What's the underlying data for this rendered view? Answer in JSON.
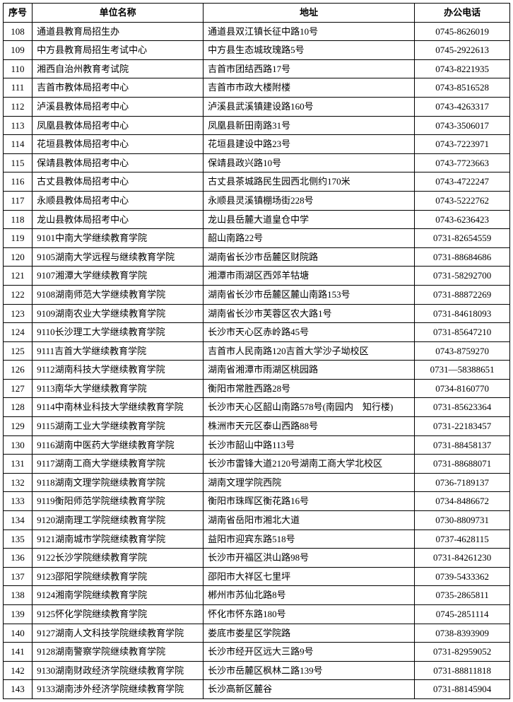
{
  "columns": [
    "序号",
    "单位名称",
    "地址",
    "办公电话"
  ],
  "rows": [
    [
      "108",
      "通道县教育局招生办",
      "通道县双江镇长征中路10号",
      "0745-8626019"
    ],
    [
      "109",
      "中方县教育局招生考试中心",
      "中方县生态城玫瑰路5号",
      "0745-2922613"
    ],
    [
      "110",
      "湘西自治州教育考试院",
      "吉首市团结西路17号",
      "0743-8221935"
    ],
    [
      "111",
      "吉首市教体局招考中心",
      "吉首市市政大楼附楼",
      "0743-8516528"
    ],
    [
      "112",
      "泸溪县教体局招考中心",
      "泸溪县武溪镇建设路160号",
      "0743-4263317"
    ],
    [
      "113",
      "凤凰县教体局招考中心",
      "凤凰县新田南路31号",
      "0743-3506017"
    ],
    [
      "114",
      "花垣县教体局招考中心",
      "花垣县建设中路23号",
      "0743-7223971"
    ],
    [
      "115",
      "保靖县教体局招考中心",
      "保靖县政兴路10号",
      "0743-7723663"
    ],
    [
      "116",
      "古丈县教体局招考中心",
      "古丈县茶城路民生园西北侧约170米",
      "0743-4722247"
    ],
    [
      "117",
      "永顺县教体局招考中心",
      "永顺县灵溪镇棚场街228号",
      "0743-5222762"
    ],
    [
      "118",
      "龙山县教体局招考中心",
      "龙山县岳麓大道皇仓中学",
      "0743-6236423"
    ],
    [
      "119",
      "9101中南大学继续教育学院",
      "韶山南路22号",
      "0731-82654559"
    ],
    [
      "120",
      "9105湖南大学远程与继续教育学院",
      "湖南省长沙市岳麓区财院路",
      "0731-88684686"
    ],
    [
      "121",
      "9107湘潭大学继续教育学院",
      "湘潭市雨湖区西郊羊牯塘",
      "0731-58292700"
    ],
    [
      "122",
      "9108湖南师范大学继续教育学院",
      "湖南省长沙市岳麓区麓山南路153号",
      "0731-88872269"
    ],
    [
      "123",
      "9109湖南农业大学继续教育学院",
      "湖南省长沙市芙蓉区农大路1号",
      "0731-84618093"
    ],
    [
      "124",
      "9110长沙理工大学继续教育学院",
      "长沙市天心区赤岭路45号",
      "0731-85647210"
    ],
    [
      "125",
      "9111吉首大学继续教育学院",
      "吉首市人民南路120吉首大学沙子坳校区",
      "0743-8759270"
    ],
    [
      "126",
      "9112湖南科技大学继续教育学院",
      "湖南省湘潭市雨湖区桃园路",
      "0731—58388651"
    ],
    [
      "127",
      "9113南华大学继续教育学院",
      "衡阳市常胜西路28号",
      "0734-8160770"
    ],
    [
      "128",
      "9114中南林业科技大学继续教育学院",
      "长沙市天心区韶山南路578号(南园内　知行楼)",
      "0731-85623364"
    ],
    [
      "129",
      "9115湖南工业大学继续教育学院",
      "株洲市天元区泰山西路88号",
      "0731-22183457"
    ],
    [
      "130",
      "9116湖南中医药大学继续教育学院",
      "长沙市韶山中路113号",
      "0731-88458137"
    ],
    [
      "131",
      "9117湖南工商大学继续教育学院",
      "长沙市雷锋大道2120号湖南工商大学北校区",
      "0731-88688071"
    ],
    [
      "132",
      "9118湖南文理学院继续教育学院",
      "湖南文理学院西院",
      "0736-7189137"
    ],
    [
      "133",
      "9119衡阳师范学院继续教育学院",
      "衡阳市珠晖区衡花路16号",
      "0734-8486672"
    ],
    [
      "134",
      "9120湖南理工学院继续教育学院",
      "湖南省岳阳市湘北大道",
      "0730-8809731"
    ],
    [
      "135",
      "9121湖南城市学院继续教育学院",
      "益阳市迎宾东路518号",
      "0737-4628115"
    ],
    [
      "136",
      "9122长沙学院继续教育学院",
      "长沙市开福区洪山路98号",
      "0731-84261230"
    ],
    [
      "137",
      "9123邵阳学院继续教育学院",
      "邵阳市大祥区七里坪",
      "0739-5433362"
    ],
    [
      "138",
      "9124湘南学院继续教育学院",
      "郴州市苏仙北路8号",
      "0735-2865811"
    ],
    [
      "139",
      "9125怀化学院继续教育学院",
      "怀化市怀东路180号",
      "0745-2851114"
    ],
    [
      "140",
      "9127湖南人文科技学院继续教育学院",
      "娄底市娄星区学院路",
      "0738-8393909"
    ],
    [
      "141",
      "9128湖南警察学院继续教育学院",
      "长沙市经开区远大三路9号",
      "0731-82959052"
    ],
    [
      "142",
      "9130湖南财政经济学院继续教育学院",
      "长沙市岳麓区枫林二路139号",
      "0731-88811818"
    ],
    [
      "143",
      "9133湖南涉外经济学院继续教育学院",
      "长沙高新区麓谷",
      "0731-88145904"
    ]
  ]
}
